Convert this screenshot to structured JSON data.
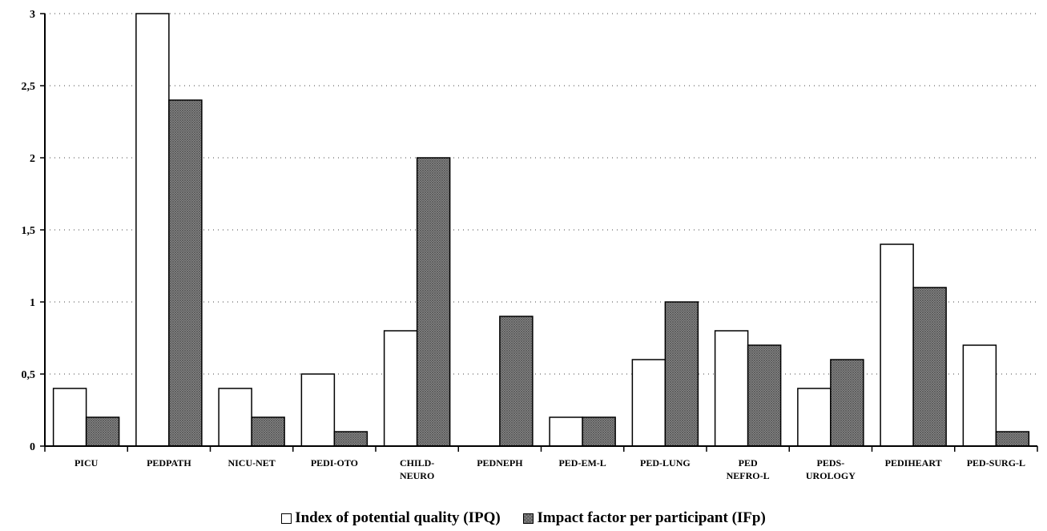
{
  "chart_data": {
    "type": "bar",
    "categories": [
      [
        "PICU"
      ],
      [
        "PEDPATH"
      ],
      [
        "NICU-NET"
      ],
      [
        "PEDI-OTO"
      ],
      [
        "CHILD-",
        "NEURO"
      ],
      [
        "PEDNEPH"
      ],
      [
        "PED-EM-L"
      ],
      [
        "PED-LUNG"
      ],
      [
        "PED",
        "NEFRO-L"
      ],
      [
        "PEDS-",
        "UROLOGY"
      ],
      [
        "PEDIHEART"
      ],
      [
        "PED-SURG-L"
      ]
    ],
    "series": [
      {
        "name": "Index of potential quality (IPQ)",
        "values": [
          0.4,
          3.0,
          0.4,
          0.5,
          0.8,
          0,
          0.2,
          0.6,
          0.8,
          0.4,
          1.4,
          0.7
        ],
        "color": "#ffffff"
      },
      {
        "name": "Impact factor per participant (IFp)",
        "values": [
          0.2,
          2.4,
          0.2,
          0.1,
          2.0,
          0.9,
          0.2,
          1.0,
          0.7,
          0.6,
          1.1,
          0.1
        ],
        "color": "#8a8a8a"
      }
    ],
    "yticks": [
      "0",
      "0,5",
      "1",
      "1,5",
      "2",
      "2,5",
      "3"
    ],
    "ylim": [
      0,
      3
    ],
    "grid": "dotted horizontal",
    "legend": "bottom-center",
    "title": "",
    "xlabel": "",
    "ylabel": ""
  }
}
